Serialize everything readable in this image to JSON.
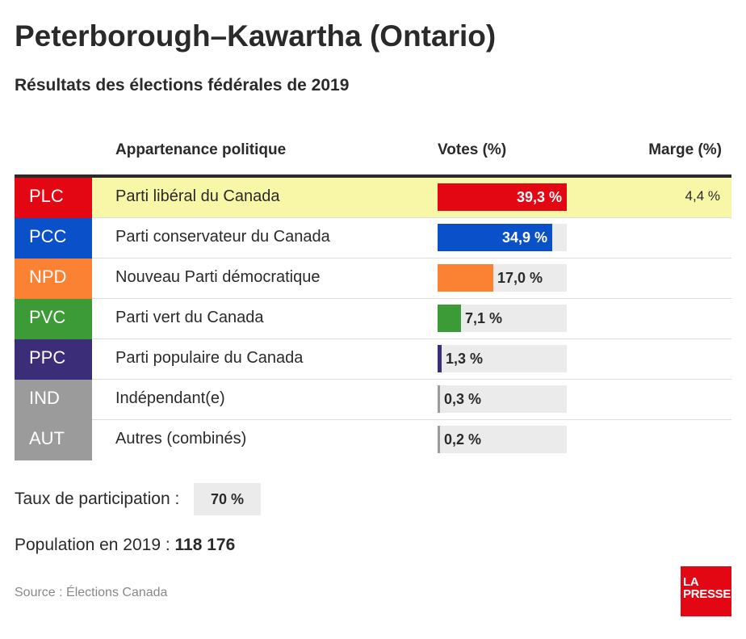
{
  "header": {
    "title": "Peterborough–Kawartha (Ontario)",
    "subtitle": "Résultats des élections fédérales de 2019"
  },
  "columns": {
    "party": "Appartenance politique",
    "votes": "Votes (%)",
    "margin": "Marge (%)"
  },
  "chart_data": {
    "type": "bar",
    "title": "Peterborough–Kawartha (Ontario)",
    "subtitle": "Résultats des élections fédérales de 2019",
    "ylim": [
      0,
      39.3
    ],
    "series": [
      {
        "name": "Votes (%)",
        "values": [
          39.3,
          34.9,
          17.0,
          7.1,
          1.3,
          0.3,
          0.2
        ]
      }
    ],
    "rows": [
      {
        "abbr": "PLC",
        "party": "Parti libéral du Canada",
        "votes": 39.3,
        "label": "39,3 %",
        "color": "#e30613",
        "margin": "4,4 %",
        "highlight": true,
        "label_inside": true
      },
      {
        "abbr": "PCC",
        "party": "Parti conservateur du Canada",
        "votes": 34.9,
        "label": "34,9 %",
        "color": "#0a50c8",
        "margin": "",
        "highlight": false,
        "label_inside": true
      },
      {
        "abbr": "NPD",
        "party": "Nouveau Parti démocratique",
        "votes": 17.0,
        "label": "17,0 %",
        "color": "#fa8232",
        "margin": "",
        "highlight": false,
        "label_inside": false
      },
      {
        "abbr": "PVC",
        "party": "Parti vert du Canada",
        "votes": 7.1,
        "label": "7,1 %",
        "color": "#3c9b37",
        "margin": "",
        "highlight": false,
        "label_inside": false
      },
      {
        "abbr": "PPC",
        "party": "Parti populaire du Canada",
        "votes": 1.3,
        "label": "1,3 %",
        "color": "#3c2d78",
        "margin": "",
        "highlight": false,
        "label_inside": false
      },
      {
        "abbr": "IND",
        "party": "Indépendant(e)",
        "votes": 0.3,
        "label": "0,3 %",
        "color": "#9b9b9b",
        "margin": "",
        "highlight": false,
        "label_inside": false
      },
      {
        "abbr": "AUT",
        "party": "Autres (combinés)",
        "votes": 0.2,
        "label": "0,2 %",
        "color": "#9b9b9b",
        "margin": "",
        "highlight": false,
        "label_inside": false
      }
    ]
  },
  "footer": {
    "turnout_label": "Taux de participation :",
    "turnout_value": "70 %",
    "population_label": "Population en 2019 :",
    "population_value": "118 176",
    "source": "Source : Élections Canada",
    "logo_line1": "LA",
    "logo_line2": "PRESSE"
  }
}
